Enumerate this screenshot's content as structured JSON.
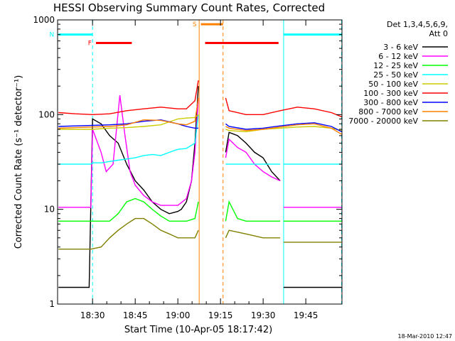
{
  "chart_data": {
    "type": "line",
    "title": "HESSI Observing Summary Count Rates, Corrected",
    "xlabel": "Start Time (10-Apr-05 18:17:42)",
    "ylabel": "Corrected Count Rate (s⁻¹ detector⁻¹)",
    "xlim": [
      18.295,
      19.962
    ],
    "ylim": [
      1,
      1000
    ],
    "yscale": "log",
    "x_ticks": [
      "18:30",
      "18:45",
      "19:00",
      "19:15",
      "19:30",
      "19:45"
    ],
    "y_ticks": [
      "1",
      "10",
      "100",
      "1000"
    ],
    "legend_title": "Det 1,3,4,5,6,9,",
    "legend_subtitle": "Att 0",
    "legend_position": "right",
    "timestamp": "18-Mar-2010 12:47",
    "series": [
      {
        "name": "3 - 6 keV",
        "color": "#000000",
        "x": [
          18.3,
          18.4,
          18.48,
          18.5,
          18.55,
          18.6,
          18.65,
          18.7,
          18.75,
          18.8,
          18.85,
          18.9,
          18.95,
          19.0,
          19.02,
          19.05,
          19.08,
          19.1,
          19.12,
          null,
          19.28,
          19.3,
          19.35,
          19.4,
          19.45,
          19.5,
          19.55,
          19.6,
          null,
          19.62,
          19.7,
          19.8,
          19.9,
          19.96
        ],
        "y": [
          1.5,
          1.5,
          1.5,
          90,
          80,
          60,
          50,
          30,
          20,
          16,
          12,
          10,
          9,
          9.5,
          10,
          12,
          20,
          50,
          200,
          null,
          40,
          65,
          60,
          50,
          40,
          35,
          25,
          20,
          null,
          1.5,
          1.5,
          1.5,
          1.5,
          1.5
        ]
      },
      {
        "name": "6 - 12 keV",
        "color": "#ff00ff",
        "x": [
          18.3,
          18.4,
          18.49,
          18.5,
          18.55,
          18.58,
          18.62,
          18.66,
          18.69,
          18.72,
          18.75,
          18.8,
          18.85,
          18.9,
          18.95,
          19.0,
          19.05,
          19.08,
          19.1,
          19.12,
          null,
          19.28,
          19.3,
          19.35,
          19.4,
          19.45,
          19.5,
          19.55,
          19.6,
          null,
          19.62,
          19.7,
          19.8,
          19.9,
          19.96
        ],
        "y": [
          10.5,
          10.5,
          10.5,
          70,
          40,
          25,
          30,
          160,
          60,
          25,
          18,
          14,
          12,
          11,
          11,
          11,
          13,
          20,
          40,
          150,
          null,
          35,
          55,
          45,
          40,
          30,
          25,
          22,
          20,
          null,
          10.5,
          10.5,
          10.5,
          10.5,
          10.5
        ]
      },
      {
        "name": "12 - 25 keV",
        "color": "#00ff00",
        "x": [
          18.3,
          18.4,
          18.49,
          18.5,
          18.6,
          18.65,
          18.7,
          18.75,
          18.8,
          18.85,
          18.9,
          18.95,
          19.0,
          19.05,
          19.1,
          19.12,
          null,
          19.28,
          19.3,
          19.35,
          19.4,
          19.45,
          19.5,
          19.55,
          19.6,
          null,
          19.62,
          19.7,
          19.8,
          19.9,
          19.96
        ],
        "y": [
          7.5,
          7.5,
          7.5,
          7.5,
          7.5,
          9,
          12,
          13,
          12,
          10,
          8.5,
          7.5,
          7.5,
          7.5,
          8,
          12,
          null,
          7.5,
          12,
          8,
          7.5,
          7.5,
          7.5,
          7.5,
          7.5,
          null,
          7.5,
          7.5,
          7.5,
          7.5,
          7.5
        ]
      },
      {
        "name": "25 - 50 keV",
        "color": "#00ffff",
        "x": [
          18.3,
          18.4,
          18.49,
          18.5,
          18.55,
          18.6,
          18.65,
          18.7,
          18.75,
          18.8,
          18.85,
          18.9,
          18.95,
          19.0,
          19.05,
          19.1,
          19.12,
          null,
          19.28,
          19.3,
          19.4,
          19.5,
          19.6,
          null,
          19.62,
          19.7,
          19.8,
          19.9,
          19.96
        ],
        "y": [
          30,
          30,
          30,
          31,
          31,
          32,
          33,
          34,
          35,
          37,
          38,
          37,
          40,
          43,
          44,
          50,
          100,
          null,
          30,
          30,
          30,
          30,
          30,
          null,
          30,
          30,
          30,
          30,
          30
        ]
      },
      {
        "name": "50 - 100 keV",
        "color": "#cccc00",
        "x": [
          18.3,
          18.4,
          18.5,
          18.6,
          18.7,
          18.8,
          18.9,
          19.0,
          19.05,
          19.1,
          19.12,
          null,
          19.28,
          19.3,
          19.4,
          19.5,
          19.6,
          19.7,
          19.8,
          19.9,
          19.96
        ],
        "y": [
          70,
          70,
          70,
          72,
          73,
          75,
          78,
          90,
          92,
          93,
          100,
          null,
          70,
          68,
          66,
          70,
          72,
          74,
          75,
          72,
          68
        ]
      },
      {
        "name": "100 - 300 keV",
        "color": "#ff0000",
        "x": [
          18.3,
          18.4,
          18.5,
          18.6,
          18.7,
          18.8,
          18.9,
          19.0,
          19.05,
          19.1,
          19.12,
          null,
          19.28,
          19.3,
          19.4,
          19.5,
          19.6,
          19.7,
          19.8,
          19.9,
          19.96
        ],
        "y": [
          105,
          102,
          100,
          102,
          110,
          115,
          120,
          115,
          115,
          140,
          230,
          null,
          150,
          110,
          100,
          100,
          110,
          120,
          115,
          105,
          95
        ]
      },
      {
        "name": "300 - 800 keV",
        "color": "#0000ff",
        "x": [
          18.3,
          18.4,
          18.5,
          18.6,
          18.7,
          18.8,
          18.9,
          19.0,
          19.05,
          19.1,
          19.12,
          null,
          19.28,
          19.3,
          19.4,
          19.5,
          19.6,
          19.7,
          19.8,
          19.9,
          19.96
        ],
        "y": [
          75,
          76,
          77,
          78,
          80,
          85,
          88,
          80,
          75,
          72,
          72,
          null,
          80,
          75,
          70,
          72,
          76,
          80,
          82,
          75,
          66
        ]
      },
      {
        "name": "800 - 7000 keV",
        "color": "#ff8000",
        "x": [
          18.3,
          18.4,
          18.5,
          18.6,
          18.7,
          18.8,
          18.9,
          19.0,
          19.05,
          19.1,
          19.12,
          null,
          19.28,
          19.3,
          19.4,
          19.5,
          19.6,
          19.7,
          19.8,
          19.9,
          19.96
        ],
        "y": [
          72,
          73,
          74,
          75,
          78,
          88,
          87,
          80,
          78,
          85,
          150,
          null,
          75,
          72,
          68,
          70,
          74,
          78,
          80,
          72,
          62
        ]
      },
      {
        "name": "7000 - 20000 keV",
        "color": "#808000",
        "x": [
          18.3,
          18.4,
          18.49,
          18.55,
          18.6,
          18.65,
          18.7,
          18.75,
          18.8,
          18.85,
          18.9,
          18.95,
          19.0,
          19.05,
          19.1,
          19.12,
          null,
          19.28,
          19.3,
          19.4,
          19.5,
          19.6,
          null,
          19.62,
          19.7,
          19.8,
          19.9,
          19.96
        ],
        "y": [
          3.8,
          3.8,
          3.8,
          4,
          5,
          6,
          7,
          8,
          8,
          7,
          6,
          5.5,
          5,
          5,
          5,
          6,
          null,
          5,
          6,
          5.5,
          5,
          5,
          null,
          4.5,
          4.5,
          4.5,
          4.5,
          4.5
        ]
      }
    ],
    "annotations": [
      {
        "label": "F",
        "color": "#ff0000",
        "y": 570,
        "segments": [
          [
            18.52,
            18.73
          ],
          [
            19.16,
            19.59
          ]
        ]
      },
      {
        "label": "N",
        "color": "#00ffff",
        "y": 700,
        "segments": [
          [
            18.3,
            18.5
          ],
          [
            19.62,
            19.96
          ]
        ]
      },
      {
        "label": "S",
        "color": "#ff8000",
        "y": 900,
        "segments": [
          [
            19.135,
            19.265
          ]
        ]
      }
    ],
    "vlines": [
      {
        "x": 18.5,
        "color": "#00ffff",
        "style": "dashed"
      },
      {
        "x": 19.62,
        "color": "#00ffff",
        "style": "solid"
      },
      {
        "x": 19.96,
        "color": "#00ffff",
        "style": "dashed"
      },
      {
        "x": 19.125,
        "color": "#ff8000",
        "style": "solid"
      },
      {
        "x": 19.265,
        "color": "#ff8000",
        "style": "dashed"
      }
    ]
  }
}
